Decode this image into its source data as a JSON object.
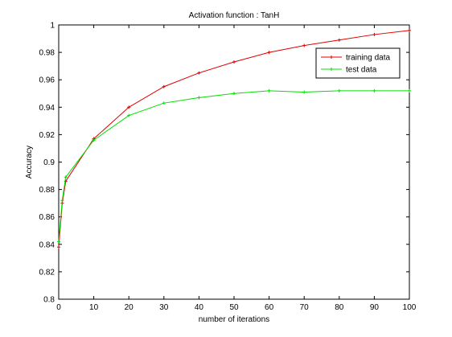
{
  "chart_data": {
    "type": "line",
    "title": "Activation function : TanH",
    "xlabel": "number of iterations",
    "ylabel": "Accuracy",
    "xlim": [
      0,
      100
    ],
    "ylim": [
      0.8,
      1.0
    ],
    "xticks": [
      0,
      10,
      20,
      30,
      40,
      50,
      60,
      70,
      80,
      90,
      100
    ],
    "yticks": [
      0.8,
      0.82,
      0.84,
      0.86,
      0.88,
      0.9,
      0.92,
      0.94,
      0.96,
      0.98,
      1
    ],
    "ytick_labels": [
      "0.8",
      "0.82",
      "0.84",
      "0.86",
      "0.88",
      "0.9",
      "0.92",
      "0.94",
      "0.96",
      "0.98",
      "1"
    ],
    "grid": false,
    "legend_position": "top-right",
    "x": [
      0,
      1,
      2,
      10,
      20,
      30,
      40,
      50,
      60,
      70,
      80,
      90,
      100
    ],
    "series": [
      {
        "name": "training data",
        "color": "#e00000",
        "marker": "+",
        "values": [
          0.838,
          0.87,
          0.886,
          0.917,
          0.94,
          0.955,
          0.965,
          0.973,
          0.98,
          0.985,
          0.989,
          0.993,
          0.996
        ]
      },
      {
        "name": "test data",
        "color": "#00e000",
        "marker": "+",
        "values": [
          0.842,
          0.872,
          0.889,
          0.916,
          0.934,
          0.943,
          0.947,
          0.95,
          0.952,
          0.951,
          0.952,
          0.952,
          0.952
        ]
      }
    ]
  }
}
